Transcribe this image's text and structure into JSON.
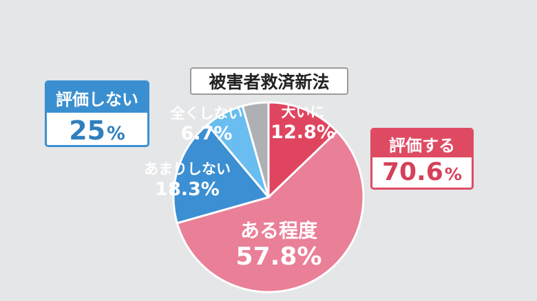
{
  "title": "被害者救済新法",
  "left_badge": {
    "label": "評価しない",
    "value": "25",
    "unit": "%"
  },
  "right_badge": {
    "label": "評価する",
    "value": "70.6",
    "unit": "%"
  },
  "chart_data": {
    "type": "pie",
    "title": "被害者救済新法",
    "slices": [
      {
        "label": "大いに",
        "value": 12.8,
        "value_text": "12.8%",
        "color": "#e0455f",
        "label_color": "#ffffff"
      },
      {
        "label": "ある程度",
        "value": 57.8,
        "value_text": "57.8%",
        "color": "#ea7f98",
        "label_color": "#ffffff"
      },
      {
        "label": "あまりしない",
        "value": 18.3,
        "value_text": "18.3%",
        "color": "#3b8fd2",
        "label_color": "#ffffff"
      },
      {
        "label": "全くしない",
        "value": 6.7,
        "value_text": "6.7%",
        "color": "#69bdf0",
        "label_color": "#ffffff"
      },
      {
        "label": "",
        "value": 4.4,
        "value_text": "",
        "color": "#aeb0b3",
        "label_color": "#ffffff"
      }
    ],
    "start_angle_deg": 0,
    "direction": "clockwise"
  }
}
